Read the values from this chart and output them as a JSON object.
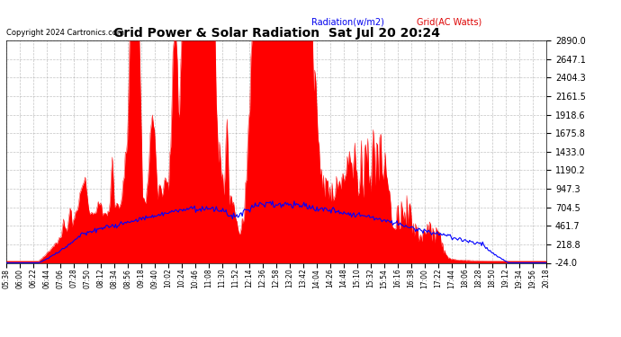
{
  "title": "Grid Power & Solar Radiation  Sat Jul 20 20:24",
  "copyright": "Copyright 2024 Cartronics.com",
  "legend_radiation": "Radiation(w/m2)",
  "legend_grid": "Grid(AC Watts)",
  "y_min": -24.0,
  "y_max": 2890.0,
  "y_ticks": [
    -24.0,
    218.8,
    461.7,
    704.5,
    947.3,
    1190.2,
    1433.0,
    1675.8,
    1918.6,
    2161.5,
    2404.3,
    2647.1,
    2890.0
  ],
  "x_labels": [
    "05:38",
    "06:00",
    "06:22",
    "06:44",
    "07:06",
    "07:28",
    "07:50",
    "08:12",
    "08:34",
    "08:56",
    "09:18",
    "09:40",
    "10:02",
    "10:24",
    "10:46",
    "11:08",
    "11:30",
    "11:52",
    "12:14",
    "12:36",
    "12:58",
    "13:20",
    "13:42",
    "14:04",
    "14:26",
    "14:48",
    "15:10",
    "15:32",
    "15:54",
    "16:16",
    "16:38",
    "17:00",
    "17:22",
    "17:44",
    "18:06",
    "18:28",
    "18:50",
    "19:12",
    "19:34",
    "19:56",
    "20:18"
  ],
  "background_color": "#ffffff",
  "plot_bg_color": "#ffffff",
  "grid_color": "#aaaaaa",
  "radiation_color": "#0000ff",
  "grid_fill_color": "#ff0000",
  "title_color": "#000000",
  "copyright_color": "#000000",
  "legend_radiation_color": "#0000ee",
  "legend_grid_color": "#dd0000"
}
